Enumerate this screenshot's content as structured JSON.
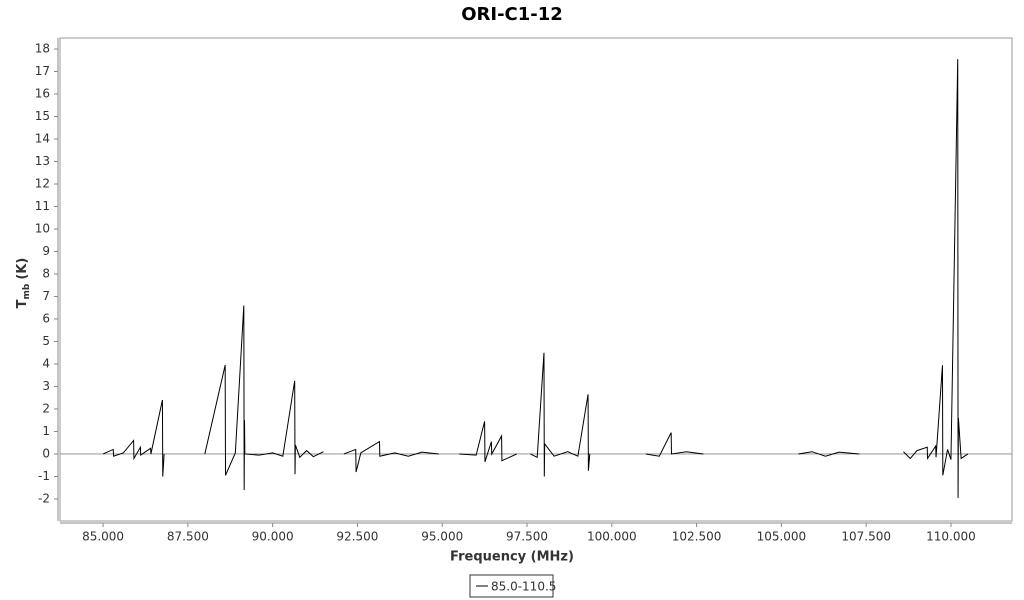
{
  "chart_data": {
    "type": "line",
    "title": "ORI-C1-12",
    "x_label": "Frequency (MHz)",
    "y_label": {
      "main": "T",
      "sub": "mb",
      "unit": "(K)"
    },
    "xlim": [
      83.73,
      111.8
    ],
    "ylim": [
      -2.98,
      18.49
    ],
    "xticks": [
      {
        "value": 85,
        "label": "85.000"
      },
      {
        "value": 87.5,
        "label": "87.500"
      },
      {
        "value": 90,
        "label": "90.000"
      },
      {
        "value": 92.5,
        "label": "92.500"
      },
      {
        "value": 95,
        "label": "95.000"
      },
      {
        "value": 97.5,
        "label": "97.500"
      },
      {
        "value": 100,
        "label": "100.000"
      },
      {
        "value": 102.5,
        "label": "102.500"
      },
      {
        "value": 105,
        "label": "105.000"
      },
      {
        "value": 107.5,
        "label": "107.500"
      },
      {
        "value": 110,
        "label": "110.000"
      }
    ],
    "yticks": [
      -2,
      -1,
      0,
      1,
      2,
      3,
      4,
      5,
      6,
      7,
      8,
      9,
      10,
      11,
      12,
      13,
      14,
      15,
      16,
      17,
      18
    ],
    "grid": false,
    "x": [
      85.0,
      85.3,
      85.31,
      85.6,
      85.9,
      85.91,
      86.1,
      86.11,
      86.4,
      86.41,
      86.75,
      86.76,
      86.8,
      87.4,
      88.0,
      88.6,
      88.61,
      88.9,
      89.15,
      89.16,
      89.17,
      89.18,
      89.6,
      90.0,
      90.3,
      90.65,
      90.66,
      90.67,
      90.8,
      91.0,
      91.2,
      91.5,
      91.8,
      92.1,
      92.45,
      92.46,
      92.6,
      93.15,
      93.16,
      93.6,
      94.0,
      94.4,
      94.9,
      95.2,
      95.5,
      96.0,
      96.25,
      96.26,
      96.45,
      96.46,
      96.75,
      96.76,
      97.2,
      97.4,
      97.6,
      97.8,
      98.0,
      98.01,
      98.02,
      98.3,
      98.7,
      99.0,
      99.3,
      99.31,
      99.35,
      100.2,
      101.0,
      101.4,
      101.75,
      101.76,
      102.2,
      102.7,
      104.0,
      105.5,
      105.9,
      106.3,
      106.7,
      107.3,
      108.0,
      108.6,
      108.8,
      109.0,
      109.3,
      109.31,
      109.55,
      109.56,
      109.75,
      109.76,
      109.9,
      110.0,
      110.2,
      110.21,
      110.22,
      110.3,
      110.5
    ],
    "series": [
      {
        "name": "85.0-110.5",
        "color": "#000000",
        "values": [
          0,
          0.2,
          -0.1,
          0.05,
          0.6,
          -0.2,
          0.3,
          -0.05,
          0.25,
          0,
          2.4,
          -1.0,
          0,
          null,
          0,
          3.95,
          -0.95,
          0.05,
          6.6,
          -1.6,
          1.5,
          0,
          -0.05,
          0.05,
          -0.1,
          3.25,
          -0.9,
          0.4,
          -0.15,
          0.15,
          -0.12,
          0.1,
          null,
          0,
          0.2,
          -0.8,
          0.05,
          0.55,
          -0.1,
          0.05,
          -0.1,
          0.08,
          0,
          null,
          0,
          -0.05,
          1.45,
          -0.35,
          0.55,
          0,
          0.8,
          -0.3,
          0,
          null,
          0,
          -0.15,
          4.5,
          -1.0,
          0.45,
          -0.1,
          0.1,
          -0.1,
          2.65,
          -0.75,
          0,
          null,
          0,
          -0.1,
          0.95,
          0,
          0.1,
          0,
          null,
          0,
          0.1,
          -0.1,
          0.08,
          0,
          null,
          0.1,
          -0.2,
          0.15,
          0.3,
          -0.2,
          0.35,
          -0.15,
          3.95,
          -0.95,
          0.2,
          -0.25,
          17.55,
          -1.95,
          1.6,
          -0.2,
          0
        ]
      }
    ]
  }
}
